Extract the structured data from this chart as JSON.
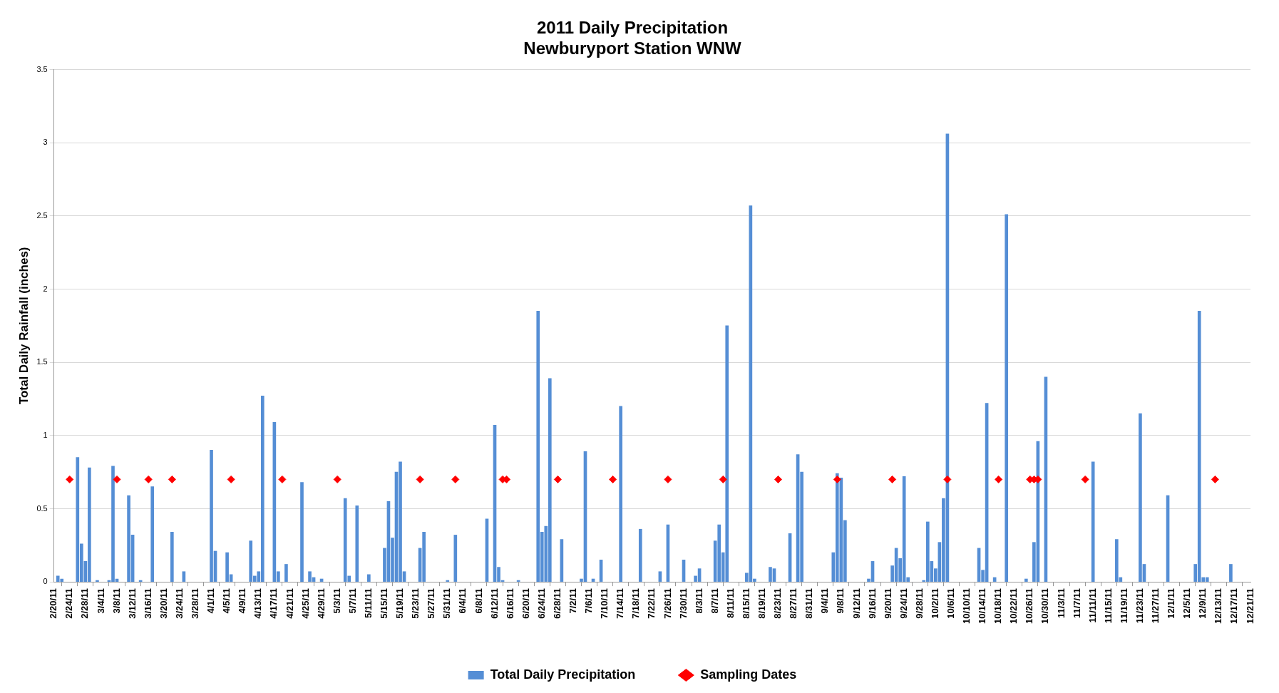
{
  "chart_data": {
    "type": "bar",
    "title": "2011 Daily Precipitation",
    "subtitle": "Newburyport Station WNW",
    "ylabel": "Total Daily Rainfall (inches)",
    "xlim": [
      "2011-02-20",
      "2011-12-21"
    ],
    "xticks": [
      {
        "value": "2011-02-20",
        "label": "2/20/11"
      },
      {
        "value": "2011-02-24",
        "label": "2/24/11"
      },
      {
        "value": "2011-02-28",
        "label": "2/28/11"
      },
      {
        "value": "2011-03-04",
        "label": "3/4/11"
      },
      {
        "value": "2011-03-08",
        "label": "3/8/11"
      },
      {
        "value": "2011-03-12",
        "label": "3/12/11"
      },
      {
        "value": "2011-03-16",
        "label": "3/16/11"
      },
      {
        "value": "2011-03-20",
        "label": "3/20/11"
      },
      {
        "value": "2011-03-24",
        "label": "3/24/11"
      },
      {
        "value": "2011-03-28",
        "label": "3/28/11"
      },
      {
        "value": "2011-04-01",
        "label": "4/1/11"
      },
      {
        "value": "2011-04-05",
        "label": "4/5/11"
      },
      {
        "value": "2011-04-09",
        "label": "4/9/11"
      },
      {
        "value": "2011-04-13",
        "label": "4/13/11"
      },
      {
        "value": "2011-04-17",
        "label": "4/17/11"
      },
      {
        "value": "2011-04-21",
        "label": "4/21/11"
      },
      {
        "value": "2011-04-25",
        "label": "4/25/11"
      },
      {
        "value": "2011-04-29",
        "label": "4/29/11"
      },
      {
        "value": "2011-05-03",
        "label": "5/3/11"
      },
      {
        "value": "2011-05-07",
        "label": "5/7/11"
      },
      {
        "value": "2011-05-11",
        "label": "5/11/11"
      },
      {
        "value": "2011-05-15",
        "label": "5/15/11"
      },
      {
        "value": "2011-05-19",
        "label": "5/19/11"
      },
      {
        "value": "2011-05-23",
        "label": "5/23/11"
      },
      {
        "value": "2011-05-27",
        "label": "5/27/11"
      },
      {
        "value": "2011-05-31",
        "label": "5/31/11"
      },
      {
        "value": "2011-06-04",
        "label": "6/4/11"
      },
      {
        "value": "2011-06-08",
        "label": "6/8/11"
      },
      {
        "value": "2011-06-12",
        "label": "6/12/11"
      },
      {
        "value": "2011-06-16",
        "label": "6/16/11"
      },
      {
        "value": "2011-06-20",
        "label": "6/20/11"
      },
      {
        "value": "2011-06-24",
        "label": "6/24/11"
      },
      {
        "value": "2011-06-28",
        "label": "6/28/11"
      },
      {
        "value": "2011-07-02",
        "label": "7/2/11"
      },
      {
        "value": "2011-07-06",
        "label": "7/6/11"
      },
      {
        "value": "2011-07-10",
        "label": "7/10/11"
      },
      {
        "value": "2011-07-14",
        "label": "7/14/11"
      },
      {
        "value": "2011-07-18",
        "label": "7/18/11"
      },
      {
        "value": "2011-07-22",
        "label": "7/22/11"
      },
      {
        "value": "2011-07-26",
        "label": "7/26/11"
      },
      {
        "value": "2011-07-30",
        "label": "7/30/11"
      },
      {
        "value": "2011-08-03",
        "label": "8/3/11"
      },
      {
        "value": "2011-08-07",
        "label": "8/7/11"
      },
      {
        "value": "2011-08-11",
        "label": "8/11/11"
      },
      {
        "value": "2011-08-15",
        "label": "8/15/11"
      },
      {
        "value": "2011-08-19",
        "label": "8/19/11"
      },
      {
        "value": "2011-08-23",
        "label": "8/23/11"
      },
      {
        "value": "2011-08-27",
        "label": "8/27/11"
      },
      {
        "value": "2011-08-31",
        "label": "8/31/11"
      },
      {
        "value": "2011-09-04",
        "label": "9/4/11"
      },
      {
        "value": "2011-09-08",
        "label": "9/8/11"
      },
      {
        "value": "2011-09-12",
        "label": "9/12/11"
      },
      {
        "value": "2011-09-16",
        "label": "9/16/11"
      },
      {
        "value": "2011-09-20",
        "label": "9/20/11"
      },
      {
        "value": "2011-09-24",
        "label": "9/24/11"
      },
      {
        "value": "2011-09-28",
        "label": "9/28/11"
      },
      {
        "value": "2011-10-02",
        "label": "10/2/11"
      },
      {
        "value": "2011-10-06",
        "label": "10/6/11"
      },
      {
        "value": "2011-10-10",
        "label": "10/10/11"
      },
      {
        "value": "2011-10-14",
        "label": "10/14/11"
      },
      {
        "value": "2011-10-18",
        "label": "10/18/11"
      },
      {
        "value": "2011-10-22",
        "label": "10/22/11"
      },
      {
        "value": "2011-10-26",
        "label": "10/26/11"
      },
      {
        "value": "2011-10-30",
        "label": "10/30/11"
      },
      {
        "value": "2011-11-03",
        "label": "11/3/11"
      },
      {
        "value": "2011-11-07",
        "label": "11/7/11"
      },
      {
        "value": "2011-11-11",
        "label": "11/11/11"
      },
      {
        "value": "2011-11-15",
        "label": "11/15/11"
      },
      {
        "value": "2011-11-19",
        "label": "11/19/11"
      },
      {
        "value": "2011-11-23",
        "label": "11/23/11"
      },
      {
        "value": "2011-11-27",
        "label": "11/27/11"
      },
      {
        "value": "2011-12-01",
        "label": "12/1/11"
      },
      {
        "value": "2011-12-05",
        "label": "12/5/11"
      },
      {
        "value": "2011-12-09",
        "label": "12/9/11"
      },
      {
        "value": "2011-12-13",
        "label": "12/13/11"
      },
      {
        "value": "2011-12-17",
        "label": "12/17/11"
      },
      {
        "value": "2011-12-21",
        "label": "12/21/11"
      }
    ],
    "ylim": [
      0,
      3.5
    ],
    "yticks": [
      0,
      0.5,
      1,
      1.5,
      2,
      2.5,
      3,
      3.5
    ],
    "grid": "y",
    "legend": "bottom",
    "series": [
      {
        "name": "Total Daily Precipitation",
        "color": "#558ed5",
        "x": [
          "2011-02-21",
          "2011-02-22",
          "2011-02-26",
          "2011-02-27",
          "2011-02-28",
          "2011-03-01",
          "2011-03-03",
          "2011-03-06",
          "2011-03-07",
          "2011-03-08",
          "2011-03-11",
          "2011-03-12",
          "2011-03-14",
          "2011-03-17",
          "2011-03-22",
          "2011-03-25",
          "2011-04-01",
          "2011-04-02",
          "2011-04-05",
          "2011-04-06",
          "2011-04-11",
          "2011-04-12",
          "2011-04-13",
          "2011-04-14",
          "2011-04-17",
          "2011-04-18",
          "2011-04-20",
          "2011-04-24",
          "2011-04-26",
          "2011-04-27",
          "2011-04-29",
          "2011-05-05",
          "2011-05-06",
          "2011-05-08",
          "2011-05-11",
          "2011-05-15",
          "2011-05-16",
          "2011-05-17",
          "2011-05-18",
          "2011-05-19",
          "2011-05-20",
          "2011-05-24",
          "2011-05-25",
          "2011-05-31",
          "2011-06-02",
          "2011-06-10",
          "2011-06-12",
          "2011-06-13",
          "2011-06-14",
          "2011-06-18",
          "2011-06-23",
          "2011-06-24",
          "2011-06-25",
          "2011-06-26",
          "2011-06-29",
          "2011-07-04",
          "2011-07-05",
          "2011-07-07",
          "2011-07-09",
          "2011-07-14",
          "2011-07-19",
          "2011-07-24",
          "2011-07-26",
          "2011-07-30",
          "2011-08-02",
          "2011-08-03",
          "2011-08-07",
          "2011-08-08",
          "2011-08-09",
          "2011-08-10",
          "2011-08-15",
          "2011-08-16",
          "2011-08-17",
          "2011-08-21",
          "2011-08-22",
          "2011-08-26",
          "2011-08-28",
          "2011-08-29",
          "2011-09-06",
          "2011-09-07",
          "2011-09-08",
          "2011-09-09",
          "2011-09-15",
          "2011-09-16",
          "2011-09-21",
          "2011-09-22",
          "2011-09-23",
          "2011-09-24",
          "2011-09-25",
          "2011-09-29",
          "2011-09-30",
          "2011-10-01",
          "2011-10-02",
          "2011-10-03",
          "2011-10-04",
          "2011-10-05",
          "2011-10-13",
          "2011-10-14",
          "2011-10-15",
          "2011-10-17",
          "2011-10-20",
          "2011-10-25",
          "2011-10-27",
          "2011-10-28",
          "2011-10-30",
          "2011-11-11",
          "2011-11-17",
          "2011-11-18",
          "2011-11-23",
          "2011-11-24",
          "2011-11-30",
          "2011-12-07",
          "2011-12-08",
          "2011-12-09",
          "2011-12-10",
          "2011-12-16"
        ],
        "values": [
          0.04,
          0.02,
          0.85,
          0.26,
          0.14,
          0.78,
          0.01,
          0.01,
          0.79,
          0.02,
          0.59,
          0.32,
          0.01,
          0.65,
          0.34,
          0.07,
          0.9,
          0.21,
          0.2,
          0.05,
          0.28,
          0.04,
          0.07,
          1.27,
          1.09,
          0.07,
          0.12,
          0.68,
          0.07,
          0.03,
          0.02,
          0.57,
          0.04,
          0.52,
          0.05,
          0.23,
          0.55,
          0.3,
          0.75,
          0.82,
          0.07,
          0.23,
          0.34,
          0.01,
          0.32,
          0.43,
          1.07,
          0.1,
          0.01,
          0.01,
          1.85,
          0.34,
          0.38,
          1.39,
          0.29,
          0.02,
          0.89,
          0.02,
          0.15,
          1.2,
          0.36,
          0.07,
          0.39,
          0.15,
          0.04,
          0.09,
          0.28,
          0.39,
          0.2,
          1.75,
          0.06,
          2.57,
          0.02,
          0.1,
          0.09,
          0.33,
          0.87,
          0.75,
          0.2,
          0.74,
          0.71,
          0.42,
          0.02,
          0.14,
          0.11,
          0.23,
          0.16,
          0.72,
          0.03,
          0.01,
          0.41,
          0.14,
          0.09,
          0.27,
          0.57,
          3.06,
          0.23,
          0.08,
          1.22,
          0.03,
          2.51,
          0.02,
          0.27,
          0.96,
          1.4,
          0.82,
          0.29,
          0.03,
          1.15,
          0.12,
          0.59,
          0.12,
          1.85,
          0.03,
          0.03,
          0.12
        ]
      },
      {
        "name": "Sampling Dates",
        "type": "scatter",
        "color": "#ff0000",
        "marker": "diamond",
        "x": [
          "2011-02-24",
          "2011-03-08",
          "2011-03-16",
          "2011-03-22",
          "2011-04-06",
          "2011-04-19",
          "2011-05-03",
          "2011-05-24",
          "2011-06-02",
          "2011-06-14",
          "2011-06-15",
          "2011-06-28",
          "2011-07-12",
          "2011-07-26",
          "2011-08-09",
          "2011-08-23",
          "2011-09-07",
          "2011-09-21",
          "2011-10-05",
          "2011-10-18",
          "2011-10-26",
          "2011-10-27",
          "2011-10-28",
          "2011-11-09",
          "2011-12-12"
        ],
        "values": [
          0.7,
          0.7,
          0.7,
          0.7,
          0.7,
          0.7,
          0.7,
          0.7,
          0.7,
          0.7,
          0.7,
          0.7,
          0.7,
          0.7,
          0.7,
          0.7,
          0.7,
          0.7,
          0.7,
          0.7,
          0.7,
          0.7,
          0.7,
          0.7,
          0.7
        ]
      }
    ]
  }
}
